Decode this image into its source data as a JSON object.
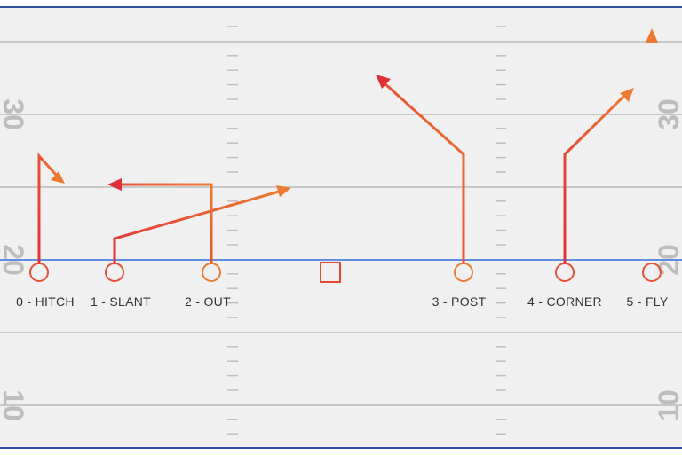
{
  "colors": {
    "field_bg": "#f0f0f0",
    "border": "#2f4f9e",
    "yard_line": "#c8c8c8",
    "hash_mark": "#bdbdbd",
    "line_of_scrimmage": "#2f6fd6",
    "yard_number": "#bdbdbd",
    "route_start": "#e0303a",
    "route_end": "#ec7a30",
    "label": "#333333"
  },
  "yard_numbers": {
    "upper": "30",
    "middle": "20",
    "lower": "10"
  },
  "center_symbol": "square",
  "routes": [
    {
      "id": "r0",
      "label": "0 - HITCH"
    },
    {
      "id": "r1",
      "label": "1 - SLANT"
    },
    {
      "id": "r2",
      "label": "2 - OUT"
    },
    {
      "id": "r3",
      "label": "3 - POST"
    },
    {
      "id": "r4",
      "label": "4 - CORNER"
    },
    {
      "id": "r5",
      "label": "5 - FLY"
    }
  ]
}
